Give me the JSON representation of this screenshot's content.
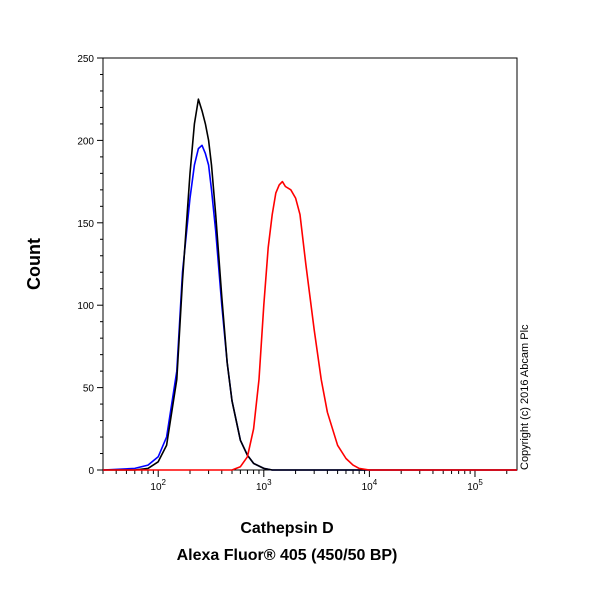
{
  "chart_data": {
    "type": "line",
    "title": "",
    "xlabel_line1": "Cathepsin D",
    "xlabel_line2": "Alexa Fluor® 405 (450/50 BP)",
    "ylabel": "Count",
    "x_scale": "log",
    "xlim": [
      30,
      250000
    ],
    "ylim": [
      0,
      250
    ],
    "y_ticks": [
      0,
      50,
      100,
      150,
      200,
      250
    ],
    "x_ticks": [
      {
        "value": 100,
        "base": "10",
        "exp": "2"
      },
      {
        "value": 1000,
        "base": "10",
        "exp": "3"
      },
      {
        "value": 10000,
        "base": "10",
        "exp": "4"
      },
      {
        "value": 100000,
        "base": "10",
        "exp": "5"
      }
    ],
    "grid": false,
    "legend": "none",
    "copyright": "Copyright (c) 2016 Abcam Plc",
    "series": [
      {
        "color": "#0000ff",
        "x": [
          30,
          60,
          80,
          100,
          120,
          150,
          170,
          200,
          220,
          240,
          260,
          280,
          300,
          320,
          350,
          400,
          450,
          500,
          600,
          700,
          800,
          1000,
          1200,
          250000
        ],
        "y": [
          0,
          1,
          3,
          8,
          20,
          60,
          120,
          165,
          185,
          195,
          197,
          192,
          185,
          170,
          145,
          100,
          65,
          42,
          18,
          9,
          4,
          1,
          0,
          0
        ]
      },
      {
        "color": "#000000",
        "x": [
          30,
          60,
          80,
          100,
          120,
          150,
          170,
          200,
          220,
          240,
          260,
          280,
          300,
          320,
          350,
          400,
          450,
          500,
          600,
          700,
          800,
          1000,
          1200,
          250000
        ],
        "y": [
          0,
          0,
          1,
          5,
          15,
          55,
          115,
          180,
          210,
          225,
          218,
          210,
          200,
          185,
          155,
          105,
          65,
          42,
          18,
          9,
          4,
          1,
          0,
          0
        ]
      },
      {
        "color": "#ff0000",
        "x": [
          30,
          500,
          600,
          700,
          800,
          900,
          1000,
          1100,
          1200,
          1300,
          1400,
          1500,
          1600,
          1800,
          2000,
          2200,
          2500,
          3000,
          3500,
          4000,
          5000,
          6000,
          7000,
          8000,
          10000,
          250000
        ],
        "y": [
          0,
          0,
          2,
          8,
          25,
          55,
          100,
          135,
          155,
          168,
          173,
          175,
          172,
          170,
          165,
          155,
          125,
          85,
          55,
          35,
          15,
          7,
          3,
          1,
          0,
          0
        ]
      }
    ]
  }
}
